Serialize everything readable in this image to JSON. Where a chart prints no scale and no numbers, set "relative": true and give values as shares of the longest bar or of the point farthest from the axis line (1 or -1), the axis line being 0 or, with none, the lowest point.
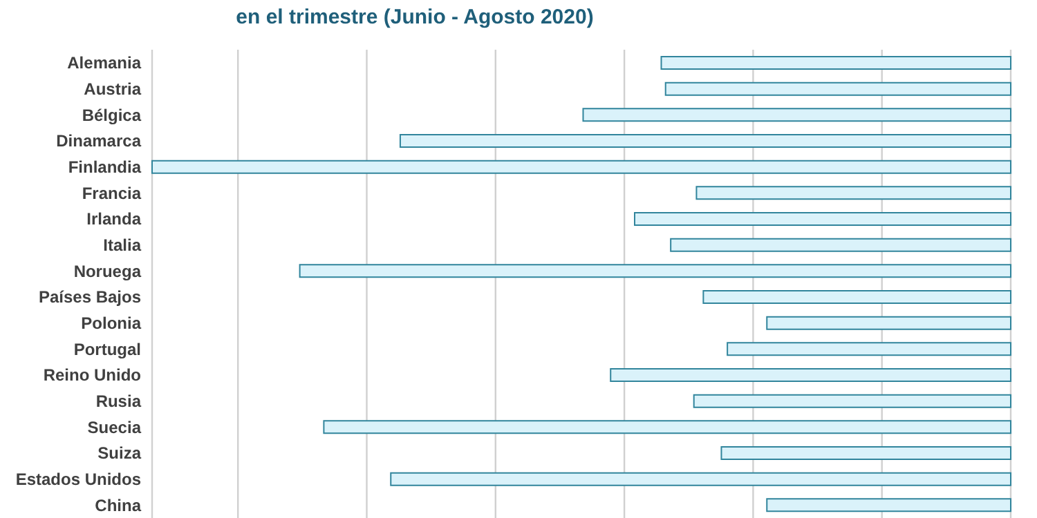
{
  "chart_data": {
    "type": "bar",
    "orientation": "horizontal",
    "relative": true,
    "title": "en el trimestre (Junio - Agosto 2020)",
    "categories": [
      "Alemania",
      "Austria",
      "Bélgica",
      "Dinamarca",
      "Finlandia",
      "Francia",
      "Irlanda",
      "Italia",
      "Noruega",
      "Países Bajos",
      "Polonia",
      "Portugal",
      "Reino Unido",
      "Rusia",
      "Suecia",
      "Suiza",
      "Estados Unidos",
      "China"
    ],
    "values": [
      0.407,
      0.402,
      0.498,
      0.711,
      1,
      0.366,
      0.438,
      0.396,
      0.828,
      0.358,
      0.284,
      0.33,
      0.466,
      0.369,
      0.8,
      0.337,
      0.722,
      0.284
    ],
    "color": "#daf2fa",
    "grid": "x"
  }
}
